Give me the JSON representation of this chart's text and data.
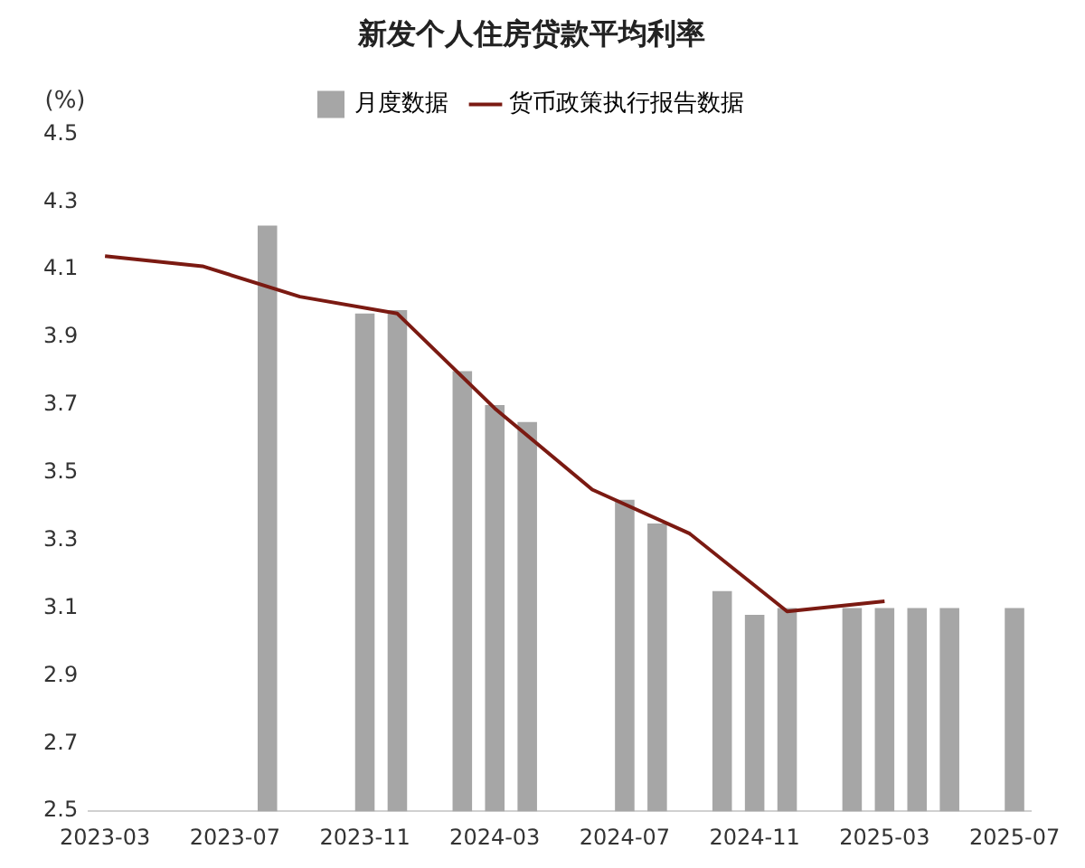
{
  "chart_data": {
    "type": "bar",
    "title": "新发个人住房贷款平均利率",
    "ylabel": "(%)",
    "categories": [
      "2023-03",
      null,
      null,
      null,
      "2023-07",
      null,
      null,
      null,
      "2023-11",
      null,
      null,
      null,
      "2024-03",
      null,
      null,
      null,
      "2024-07",
      null,
      null,
      null,
      "2024-11",
      null,
      null,
      null,
      "2025-03",
      null,
      null,
      null,
      "2025-07"
    ],
    "series": [
      {
        "name": "月度数据",
        "color": "#a6a6a6",
        "values": [
          null,
          null,
          null,
          null,
          null,
          4.23,
          null,
          null,
          3.97,
          3.98,
          null,
          3.8,
          3.7,
          3.65,
          null,
          null,
          3.42,
          3.35,
          null,
          3.15,
          3.08,
          3.1,
          null,
          3.1,
          3.1,
          3.1,
          3.1,
          null,
          3.1
        ]
      },
      {
        "name": "货币政策执行报告数据",
        "type": "line",
        "color": "#7b1a12",
        "values": [
          4.14,
          null,
          null,
          4.11,
          null,
          null,
          4.02,
          null,
          null,
          3.97,
          null,
          null,
          3.69,
          null,
          null,
          3.45,
          null,
          null,
          3.32,
          null,
          null,
          3.09,
          null,
          null,
          3.12,
          null,
          null,
          null,
          null
        ]
      }
    ],
    "ylim": [
      2.5,
      4.5
    ],
    "yticks": [
      2.5,
      2.7,
      2.9,
      3.1,
      3.3,
      3.5,
      3.7,
      3.9,
      4.1,
      4.3,
      4.5
    ],
    "grid": false,
    "legend": "top",
    "marker": "none"
  }
}
